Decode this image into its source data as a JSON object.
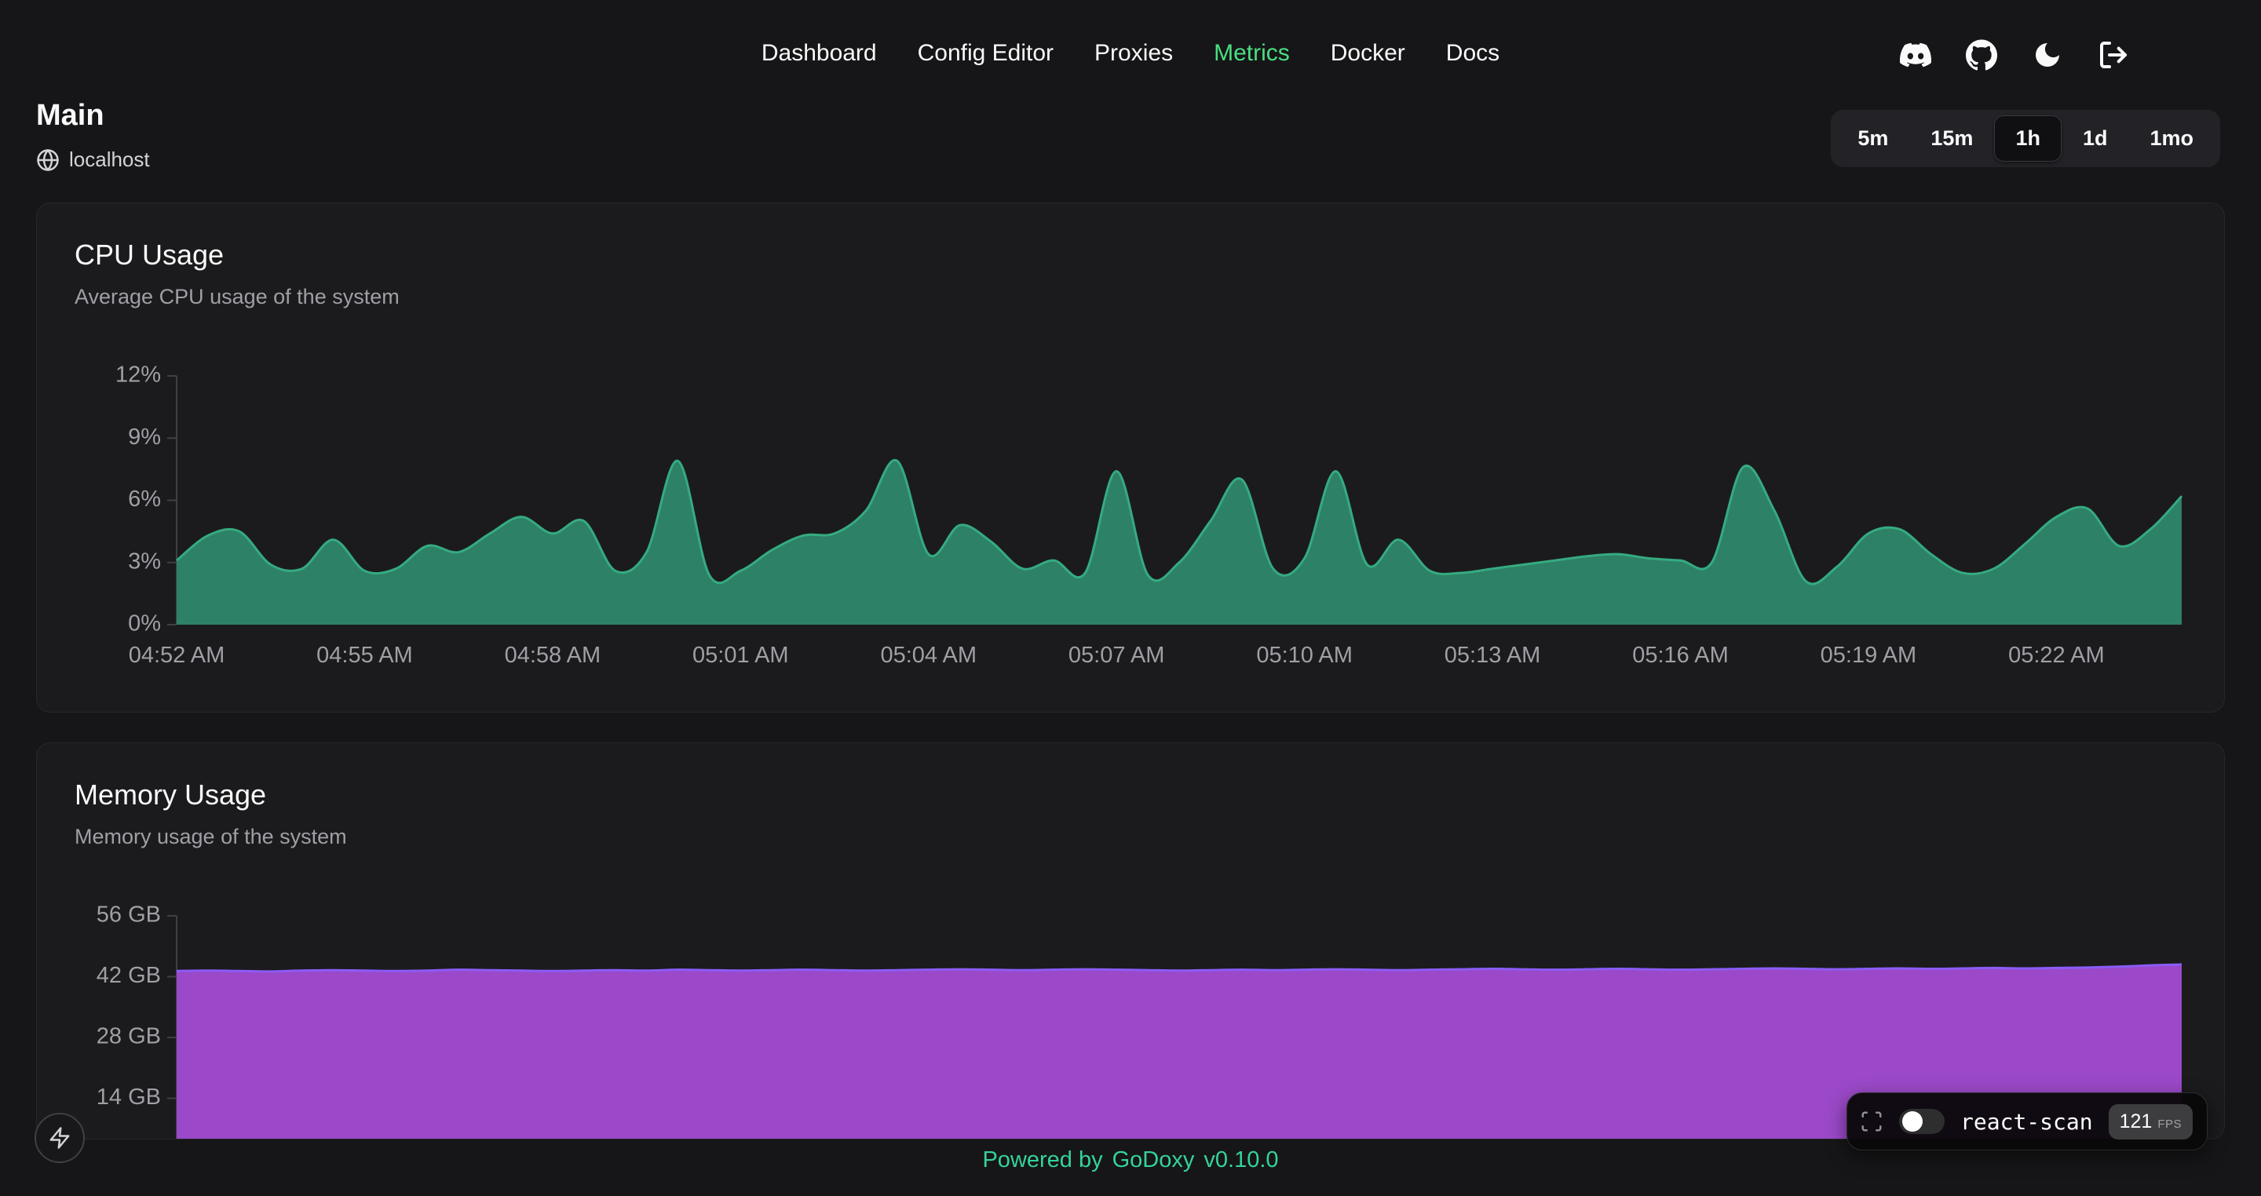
{
  "theme": {
    "accent": "#4ade80",
    "page_bg": "#161618",
    "card_bg": "#1b1b1d",
    "footer_color": "#34d399"
  },
  "nav": {
    "items": [
      {
        "label": "Dashboard",
        "active": false
      },
      {
        "label": "Config Editor",
        "active": false
      },
      {
        "label": "Proxies",
        "active": false
      },
      {
        "label": "Metrics",
        "active": true
      },
      {
        "label": "Docker",
        "active": false
      },
      {
        "label": "Docs",
        "active": false
      }
    ]
  },
  "header_icons": [
    {
      "name": "discord-icon"
    },
    {
      "name": "github-icon"
    },
    {
      "name": "theme-moon-icon"
    },
    {
      "name": "logout-icon"
    }
  ],
  "page": {
    "title": "Main",
    "host": "localhost"
  },
  "time_range": {
    "options": [
      "5m",
      "15m",
      "1h",
      "1d",
      "1mo"
    ],
    "selected": "1h"
  },
  "chart_data": [
    {
      "type": "area",
      "title": "CPU Usage",
      "subtitle": "Average CPU usage of the system",
      "unit": "%",
      "ylim": [
        0,
        12
      ],
      "grid": false,
      "legend": "none",
      "y_ticks": [
        {
          "v": 0,
          "label": "0%"
        },
        {
          "v": 3,
          "label": "3%"
        },
        {
          "v": 6,
          "label": "6%"
        },
        {
          "v": 9,
          "label": "9%"
        },
        {
          "v": 12,
          "label": "12%"
        }
      ],
      "x_labels": [
        "04:52 AM",
        "04:55 AM",
        "04:58 AM",
        "05:01 AM",
        "05:04 AM",
        "05:07 AM",
        "05:10 AM",
        "05:13 AM",
        "05:16 AM",
        "05:19 AM",
        "05:22 AM"
      ],
      "x_label_every": 6,
      "values": [
        3.1,
        4.3,
        4.5,
        2.9,
        2.7,
        4.1,
        2.6,
        2.7,
        3.8,
        3.5,
        4.4,
        5.2,
        4.4,
        5.0,
        2.6,
        3.5,
        7.9,
        2.4,
        2.6,
        3.6,
        4.3,
        4.4,
        5.5,
        7.9,
        3.4,
        4.8,
        4.0,
        2.7,
        3.1,
        2.5,
        7.4,
        2.4,
        3.0,
        5.0,
        7.0,
        2.7,
        3.2,
        7.4,
        2.9,
        4.1,
        2.6,
        2.5,
        2.7,
        2.9,
        3.1,
        3.3,
        3.4,
        3.2,
        3.1,
        3.0,
        7.6,
        5.5,
        2.1,
        2.8,
        4.4,
        4.6,
        3.4,
        2.5,
        2.7,
        3.9,
        5.2,
        5.6,
        3.8,
        4.6,
        6.2
      ],
      "fill": "#2d8166",
      "stroke": "#35ab81"
    },
    {
      "type": "area",
      "title": "Memory Usage",
      "subtitle": "Memory usage of the system",
      "unit": "GB",
      "ylim": [
        0,
        56
      ],
      "grid": false,
      "legend": "none",
      "y_ticks": [
        {
          "v": 14,
          "label": "14 GB"
        },
        {
          "v": 28,
          "label": "28 GB"
        },
        {
          "v": 42,
          "label": "42 GB"
        },
        {
          "v": 56,
          "label": "56 GB"
        }
      ],
      "x_labels": [],
      "x_label_every": 6,
      "values": [
        43.3,
        43.4,
        43.3,
        43.2,
        43.4,
        43.5,
        43.4,
        43.3,
        43.4,
        43.6,
        43.5,
        43.4,
        43.3,
        43.4,
        43.5,
        43.4,
        43.6,
        43.5,
        43.4,
        43.5,
        43.6,
        43.5,
        43.4,
        43.5,
        43.6,
        43.7,
        43.6,
        43.5,
        43.6,
        43.7,
        43.6,
        43.5,
        43.4,
        43.5,
        43.6,
        43.5,
        43.6,
        43.7,
        43.6,
        43.5,
        43.6,
        43.7,
        43.8,
        43.7,
        43.6,
        43.7,
        43.8,
        43.7,
        43.6,
        43.7,
        43.8,
        43.9,
        43.8,
        43.7,
        43.8,
        43.9,
        43.8,
        43.9,
        44.0,
        43.9,
        44.0,
        44.1,
        44.3,
        44.6,
        44.8
      ],
      "fill": "#9b49c8",
      "stroke": "#8b5cf6"
    }
  ],
  "footer": {
    "powered_by": "Powered by",
    "brand": "GoDoxy",
    "version": "v0.10.0"
  },
  "react_scan": {
    "label": "react-scan",
    "fps": "121",
    "fps_unit": "FPS",
    "toggle_state": "off"
  }
}
